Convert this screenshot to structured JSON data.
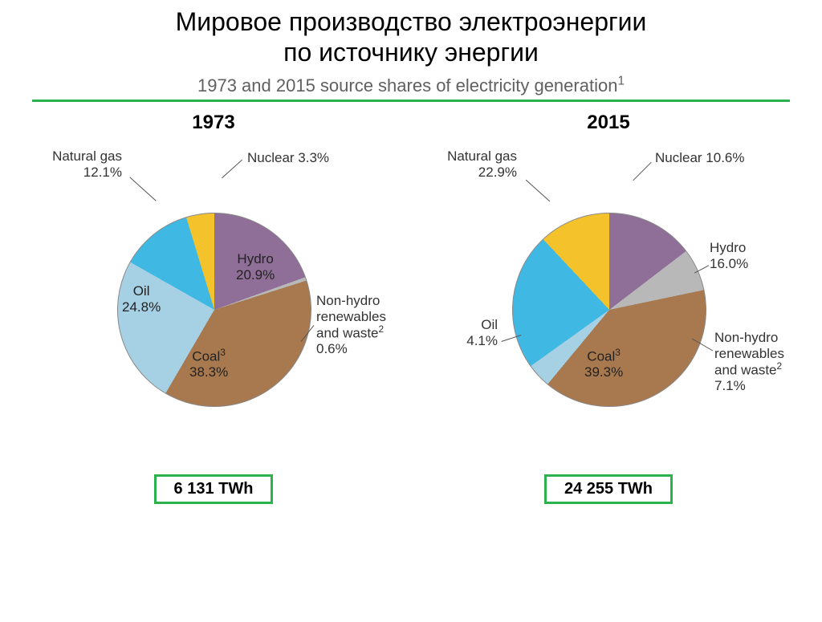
{
  "title_line1": "Мировое производство электроэнергии",
  "title_line2": "по источнику энергии",
  "subtitle": "1973 and 2015 source shares of electricity generation¹",
  "accent_color": "#2bb24c",
  "charts": [
    {
      "year": "1973",
      "total": "6 131 TWh",
      "slices": [
        {
          "name": "Hydro",
          "pct": 20.9,
          "color": "#8f6f97",
          "label": "Hydro\n20.9%"
        },
        {
          "name": "Non-hydro",
          "pct": 0.6,
          "color": "#b8b8b8",
          "label": "Non-hydro\nrenewables\nand waste²\n0.6%"
        },
        {
          "name": "Coal",
          "pct": 38.3,
          "color": "#a8794e",
          "label": "Coal³\n38.3%"
        },
        {
          "name": "Oil",
          "pct": 24.8,
          "color": "#a6d0e4",
          "label": "Oil\n24.8%"
        },
        {
          "name": "Natural gas",
          "pct": 12.1,
          "color": "#3fb9e3",
          "label": "Natural gas\n12.1%"
        },
        {
          "name": "Nuclear",
          "pct": 3.3,
          "color": "#f4c22b",
          "label": "Nuclear 3.3%"
        }
      ]
    },
    {
      "year": "2015",
      "total": "24 255 TWh",
      "slices": [
        {
          "name": "Hydro",
          "pct": 16.0,
          "color": "#8f6f97",
          "label": "Hydro\n16.0%"
        },
        {
          "name": "Non-hydro",
          "pct": 7.1,
          "color": "#b8b8b8",
          "label": "Non-hydro\nrenewables\nand waste²\n7.1%"
        },
        {
          "name": "Coal",
          "pct": 39.3,
          "color": "#a8794e",
          "label": "Coal³\n39.3%"
        },
        {
          "name": "Oil",
          "pct": 4.1,
          "color": "#a6d0e4",
          "label": "Oil\n4.1%"
        },
        {
          "name": "Natural gas",
          "pct": 22.9,
          "color": "#3fb9e3",
          "label": "Natural gas\n22.9%"
        },
        {
          "name": "Nuclear",
          "pct": 10.6,
          "color": "#f4c22b",
          "label": "Nuclear 10.6%"
        }
      ]
    }
  ],
  "pie_start_angle_deg": -5,
  "label_fontsize": 17,
  "year_fontsize": 24,
  "title_fontsize": 32,
  "subtitle_color": "#606060"
}
